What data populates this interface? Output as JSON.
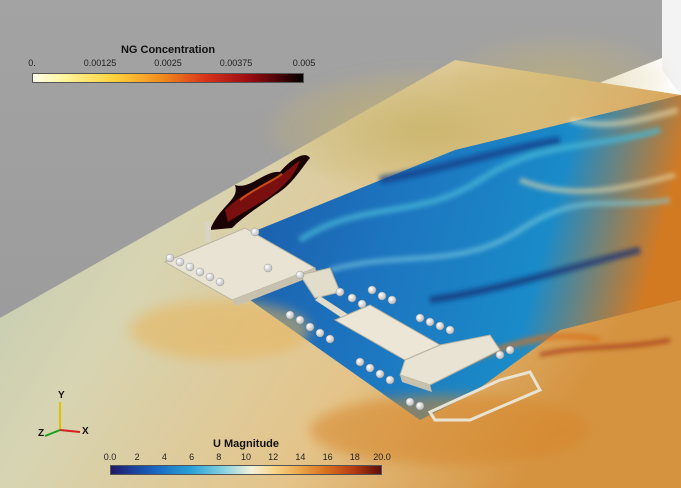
{
  "colorbars": {
    "ng": {
      "title": "NG Concentration",
      "ticks": [
        "0.",
        "0.00125",
        "0.0025",
        "0.00375",
        "0.005"
      ],
      "range": [
        0,
        0.005
      ]
    },
    "u": {
      "title": "U Magnitude",
      "ticks": [
        "0.0",
        "2",
        "4",
        "6",
        "8",
        "10",
        "12",
        "14",
        "16",
        "18",
        "20.0"
      ],
      "range": [
        0,
        20
      ]
    }
  },
  "axes": {
    "y": "Y",
    "z": "Z",
    "x": "X"
  },
  "colors": {
    "axis_x": "#d62020",
    "axis_y": "#e0c000",
    "axis_z": "#19a019",
    "platform": "#e8e3d3",
    "slice_gray": "#9a9a9a",
    "flow_low": "#1b3f9c",
    "flow_high": "#d86f1e"
  }
}
